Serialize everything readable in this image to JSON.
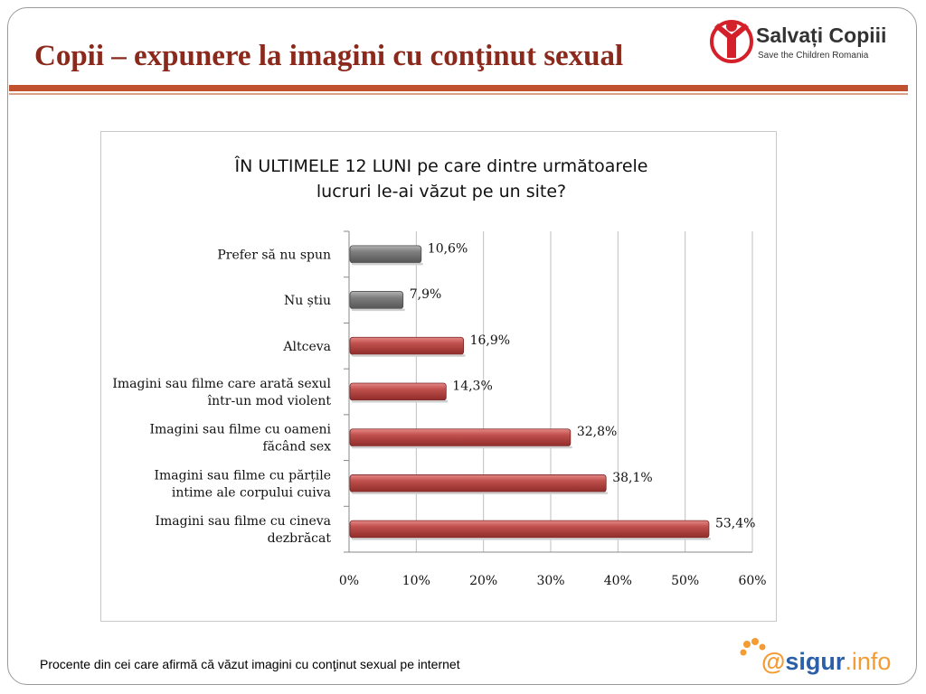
{
  "slide": {
    "title": "Copii – expunere la imagini cu conţinut sexual",
    "footnote": "Procente din cei care afirmă că văzut imagini cu conţinut sexual pe internet"
  },
  "logos": {
    "salvati": {
      "name": "Salvați Copiii",
      "tagline": "Save the Children Romania"
    },
    "sigur": {
      "at": "@",
      "name": "sigur",
      "tld": ".info"
    }
  },
  "colors": {
    "title": "#8b2a1c",
    "rule": "#c0502e",
    "bar_red": "#c0504d",
    "bar_gray": "#7f7f7f"
  },
  "chart_data": {
    "type": "bar",
    "orientation": "horizontal",
    "title_lines": [
      "ÎN ULTIMELE 12 LUNI pe care dintre următoarele",
      "lucruri le-ai văzut pe un site?"
    ],
    "categories": [
      [
        "Prefer să nu spun"
      ],
      [
        "Nu știu"
      ],
      [
        "Altceva"
      ],
      [
        "Imagini sau filme care arată sexul",
        "într-un mod violent"
      ],
      [
        "Imagini sau filme cu oameni",
        "făcând sex"
      ],
      [
        "Imagini sau filme cu părțile",
        "intime ale corpului cuiva"
      ],
      [
        "Imagini sau filme cu cineva",
        "dezbrăcat"
      ]
    ],
    "values": [
      10.6,
      7.9,
      16.9,
      14.3,
      32.8,
      38.1,
      53.4
    ],
    "value_labels": [
      "10,6%",
      "7,9%",
      "16,9%",
      "14,3%",
      "32,8%",
      "38,1%",
      "53,4%"
    ],
    "bar_colors": [
      "gray",
      "gray",
      "red",
      "red",
      "red",
      "red",
      "red"
    ],
    "x_ticks": [
      0,
      10,
      20,
      30,
      40,
      50,
      60
    ],
    "x_tick_labels": [
      "0%",
      "10%",
      "20%",
      "30%",
      "40%",
      "50%",
      "60%"
    ],
    "xlim": [
      0,
      60
    ],
    "grid": "vertical",
    "legend": "none"
  }
}
